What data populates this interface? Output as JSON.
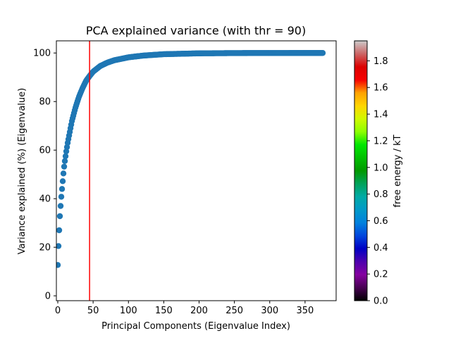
{
  "chart_data": {
    "type": "scatter",
    "title": "PCA explained variance (with thr = 90)",
    "xlabel": "Principal Components (Eigenvalue Index)",
    "ylabel": "Variance explained (%) (Eigenvalue)",
    "xlim": [
      -2,
      394
    ],
    "ylim": [
      -2,
      105
    ],
    "xticks": [
      0,
      50,
      100,
      150,
      200,
      250,
      300,
      350
    ],
    "yticks": [
      0,
      20,
      40,
      60,
      80,
      100
    ],
    "marker_color": "#1f77b4",
    "threshold_line": {
      "x": 45,
      "color": "#ff0000"
    },
    "series": [
      {
        "n_points": 376,
        "x_start": 0,
        "x_end": 375,
        "curve_shape": "saturating cumulative variance",
        "curve_samples": [
          [
            0,
            12.7
          ],
          [
            1,
            20.5
          ],
          [
            2,
            27.0
          ],
          [
            3,
            32.8
          ],
          [
            4,
            37.0
          ],
          [
            5,
            40.8
          ],
          [
            6,
            44.0
          ],
          [
            7,
            47.2
          ],
          [
            8,
            50.4
          ],
          [
            9,
            53.2
          ],
          [
            10,
            55.5
          ],
          [
            12,
            59.5
          ],
          [
            14,
            63.0
          ],
          [
            16,
            66.0
          ],
          [
            18,
            69.0
          ],
          [
            20,
            72.0
          ],
          [
            25,
            77.5
          ],
          [
            30,
            82.0
          ],
          [
            35,
            85.5
          ],
          [
            40,
            88.5
          ],
          [
            45,
            90.5
          ],
          [
            50,
            92.3
          ],
          [
            60,
            94.6
          ],
          [
            70,
            96.0
          ],
          [
            80,
            97.0
          ],
          [
            100,
            98.2
          ],
          [
            120,
            98.9
          ],
          [
            150,
            99.5
          ],
          [
            200,
            99.85
          ],
          [
            250,
            99.95
          ],
          [
            300,
            99.99
          ],
          [
            375,
            100.0
          ]
        ]
      }
    ],
    "colorbar": {
      "label": "free energy / kT",
      "range": [
        0.0,
        1.95
      ],
      "ticks": [
        "0.0",
        "0.2",
        "0.4",
        "0.6",
        "0.8",
        "1.0",
        "1.2",
        "1.4",
        "1.6",
        "1.8"
      ],
      "colormap": "nipy_spectral"
    }
  }
}
